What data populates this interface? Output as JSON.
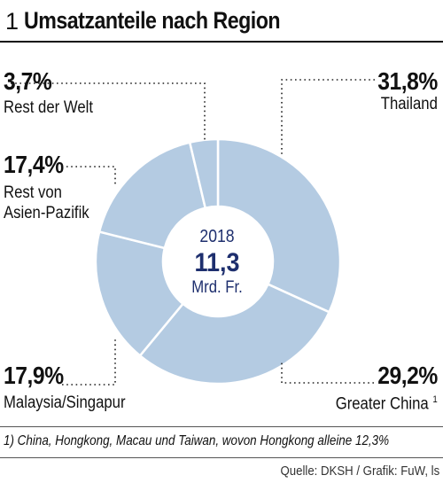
{
  "header": {
    "number": "1",
    "title": "Umsatzanteile nach Region"
  },
  "chart_data": {
    "type": "pie",
    "title": "Umsatzanteile nach Region",
    "center": {
      "year": "2018",
      "value": "11,3",
      "unit": "Mrd. Fr."
    },
    "slices": [
      {
        "label": "Thailand",
        "value": 31.8,
        "value_label": "31,8%",
        "footnote_mark": ""
      },
      {
        "label": "Greater China",
        "value": 29.2,
        "value_label": "29,2%",
        "footnote_mark": "1"
      },
      {
        "label": "Malaysia/Singapur",
        "value": 17.9,
        "value_label": "17,9%",
        "footnote_mark": ""
      },
      {
        "label": "Rest von Asien-Pazifik",
        "value": 17.4,
        "value_label": "17,4%",
        "footnote_mark": "",
        "label_lines": [
          "Rest von",
          "Asien-Pazifik"
        ]
      },
      {
        "label": "Rest der Welt",
        "value": 3.7,
        "value_label": "3,7%",
        "footnote_mark": ""
      }
    ],
    "colors": {
      "fill": "#b4cbe2",
      "stroke": "#ffffff",
      "center_text": "#1e2f6e"
    }
  },
  "footnote": "1) China, Hongkong, Macau und Taiwan, wovon Hongkong alleine 12,3%",
  "source": "Quelle: DKSH / Grafik: FuW, ls"
}
